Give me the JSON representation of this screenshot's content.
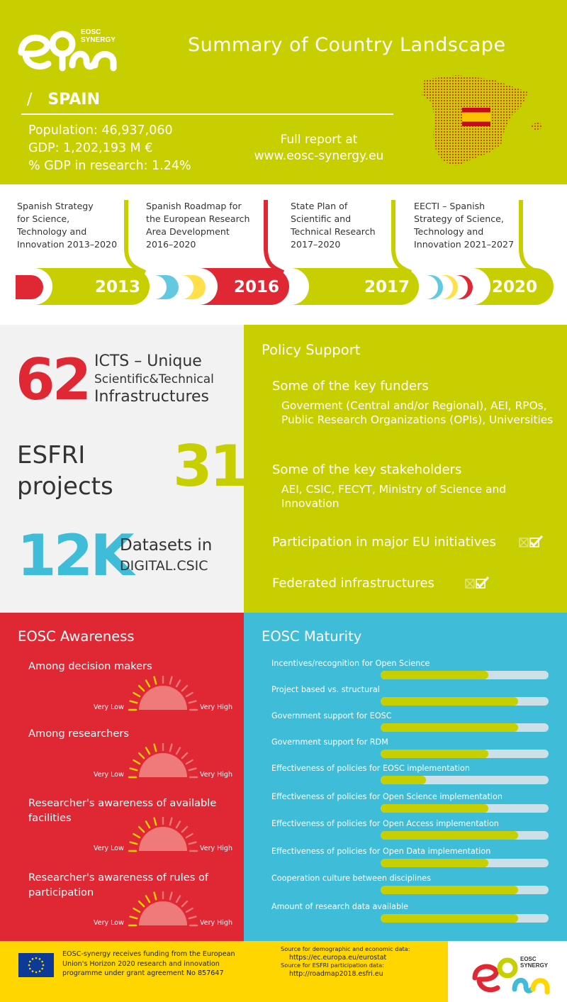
{
  "header": {
    "brand_line1": "EOSC",
    "brand_line2": "SYNERGY",
    "title": "Summary of Country Landscape",
    "slash": "/",
    "country": "SPAIN",
    "population": "Population: 46,937,060",
    "gdp": "GDP: 1,202,193 M €",
    "gdp_research": "% GDP in research: 1.24%",
    "report_line1": "Full report at",
    "report_line2": "www.eosc-synergy.eu"
  },
  "timeline": {
    "items": [
      {
        "text": [
          "Spanish Strategy",
          "for Science,",
          "Technology and",
          "Innovation 2013–2020"
        ],
        "year": "2013"
      },
      {
        "text": [
          "Spanish Roadmap for",
          "the European Research",
          "Area Development",
          "2016–2020"
        ],
        "year": "2016"
      },
      {
        "text": [
          "State Plan of",
          "Scientific and",
          "Technical Research",
          "2017–2020"
        ],
        "year": "2017"
      },
      {
        "text": [
          "EECTI – Spanish",
          "Strategy of Science,",
          "Technology and",
          "Innovation 2021–2027"
        ],
        "year": "2020"
      }
    ]
  },
  "stats": {
    "icts_number": "62",
    "icts_line1": "ICTS – Unique",
    "icts_line2": "Scientific&Technical",
    "icts_line3": "Infrastructures",
    "esfri_line1": "ESFRI",
    "esfri_line2": "projects",
    "esfri_number": "31",
    "datasets_number": "12K",
    "datasets_line1": "Datasets in",
    "datasets_line2": "DIGITAL.CSIC"
  },
  "policy": {
    "heading": "Policy Support",
    "funders_heading": "Some of the key funders",
    "funders_text": "Goverment (Central and/or Regional), AEI, RPOs, Public Research Organizations (OPIs), Universities",
    "stakeholders_heading": "Some of the key stakeholders",
    "stakeholders_text": "AEI, CSIC, FECYT, Ministry of Science and Innovation",
    "eu_initiatives": "Participation in major EU initiatives",
    "federated": "Federated infrastructures"
  },
  "awareness": {
    "heading": "EOSC Awareness",
    "low_label": "Very Low",
    "high_label": "Very High",
    "items": [
      {
        "label": "Among decision makers",
        "level": 0.5
      },
      {
        "label": "Among researchers",
        "level": 0.5
      },
      {
        "label": "Researcher's awareness of available facilities",
        "level": 0.5
      },
      {
        "label": "Researcher's awareness of rules of participation",
        "level": 0.5
      }
    ]
  },
  "maturity": {
    "heading": "EOSC Maturity",
    "items": [
      {
        "label": "Incentives/recognition for Open Science",
        "value": 0.64
      },
      {
        "label": "Project based vs. structural",
        "value": 0.82
      },
      {
        "label": "Government support for EOSC",
        "value": 0.82
      },
      {
        "label": "Government support for RDM",
        "value": 0.64
      },
      {
        "label": "Effectiveness of policies for EOSC implementation",
        "value": 0.27
      },
      {
        "label": "Effectiveness of policies for Open Science implementation",
        "value": 0.64
      },
      {
        "label": "Effectiveness of policies for Open Access implementation",
        "value": 0.82
      },
      {
        "label": "Effectiveness of policies for Open Data implementation",
        "value": 0.64
      },
      {
        "label": "Cooperation culture between disciplines",
        "value": 0.82
      },
      {
        "label": "Amount of research data available",
        "value": 0.82
      }
    ]
  },
  "footer": {
    "funding_text": "EOSC-synergy receives funding from the European Union's Horizon 2020 research and innovation programme under grant agreement No 857647",
    "source1_label": "Source for demographic and economic data:",
    "source1_url": "https://ec.europa.eu/eurostat",
    "source2_label": "Source for ESFRI participation data:",
    "source2_url": "http://roadmap2018.esfri.eu"
  },
  "colors": {
    "lime": "#c7cf00",
    "red": "#e02835",
    "blue": "#3fbcd8",
    "yellow": "#ffd600",
    "dark": "#333333"
  }
}
